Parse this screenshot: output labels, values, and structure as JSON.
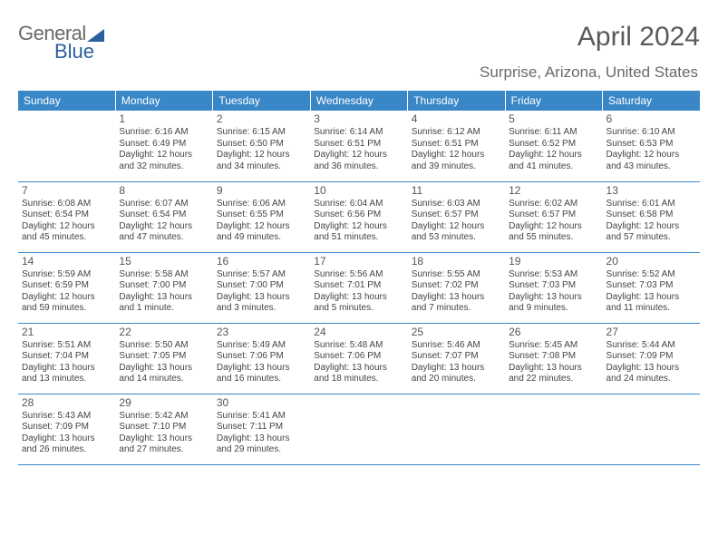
{
  "logo": {
    "part1": "General",
    "part2": "Blue"
  },
  "title": "April 2024",
  "location": "Surprise, Arizona, United States",
  "colors": {
    "header_bg": "#3a87c8",
    "header_text": "#ffffff",
    "row_border": "#3a87c8",
    "page_bg": "#ffffff",
    "body_text": "#444444",
    "logo_gray": "#6a6a6a",
    "logo_blue": "#2a5fa0"
  },
  "typography": {
    "title_fontsize": 30,
    "location_fontsize": 17,
    "dayheader_fontsize": 12,
    "daynum_fontsize": 12,
    "cell_fontsize": 10
  },
  "day_headers": [
    "Sunday",
    "Monday",
    "Tuesday",
    "Wednesday",
    "Thursday",
    "Friday",
    "Saturday"
  ],
  "weeks": [
    [
      null,
      {
        "n": "1",
        "sunrise": "6:16 AM",
        "sunset": "6:49 PM",
        "dl1": "Daylight: 12 hours",
        "dl2": "and 32 minutes."
      },
      {
        "n": "2",
        "sunrise": "6:15 AM",
        "sunset": "6:50 PM",
        "dl1": "Daylight: 12 hours",
        "dl2": "and 34 minutes."
      },
      {
        "n": "3",
        "sunrise": "6:14 AM",
        "sunset": "6:51 PM",
        "dl1": "Daylight: 12 hours",
        "dl2": "and 36 minutes."
      },
      {
        "n": "4",
        "sunrise": "6:12 AM",
        "sunset": "6:51 PM",
        "dl1": "Daylight: 12 hours",
        "dl2": "and 39 minutes."
      },
      {
        "n": "5",
        "sunrise": "6:11 AM",
        "sunset": "6:52 PM",
        "dl1": "Daylight: 12 hours",
        "dl2": "and 41 minutes."
      },
      {
        "n": "6",
        "sunrise": "6:10 AM",
        "sunset": "6:53 PM",
        "dl1": "Daylight: 12 hours",
        "dl2": "and 43 minutes."
      }
    ],
    [
      {
        "n": "7",
        "sunrise": "6:08 AM",
        "sunset": "6:54 PM",
        "dl1": "Daylight: 12 hours",
        "dl2": "and 45 minutes."
      },
      {
        "n": "8",
        "sunrise": "6:07 AM",
        "sunset": "6:54 PM",
        "dl1": "Daylight: 12 hours",
        "dl2": "and 47 minutes."
      },
      {
        "n": "9",
        "sunrise": "6:06 AM",
        "sunset": "6:55 PM",
        "dl1": "Daylight: 12 hours",
        "dl2": "and 49 minutes."
      },
      {
        "n": "10",
        "sunrise": "6:04 AM",
        "sunset": "6:56 PM",
        "dl1": "Daylight: 12 hours",
        "dl2": "and 51 minutes."
      },
      {
        "n": "11",
        "sunrise": "6:03 AM",
        "sunset": "6:57 PM",
        "dl1": "Daylight: 12 hours",
        "dl2": "and 53 minutes."
      },
      {
        "n": "12",
        "sunrise": "6:02 AM",
        "sunset": "6:57 PM",
        "dl1": "Daylight: 12 hours",
        "dl2": "and 55 minutes."
      },
      {
        "n": "13",
        "sunrise": "6:01 AM",
        "sunset": "6:58 PM",
        "dl1": "Daylight: 12 hours",
        "dl2": "and 57 minutes."
      }
    ],
    [
      {
        "n": "14",
        "sunrise": "5:59 AM",
        "sunset": "6:59 PM",
        "dl1": "Daylight: 12 hours",
        "dl2": "and 59 minutes."
      },
      {
        "n": "15",
        "sunrise": "5:58 AM",
        "sunset": "7:00 PM",
        "dl1": "Daylight: 13 hours",
        "dl2": "and 1 minute."
      },
      {
        "n": "16",
        "sunrise": "5:57 AM",
        "sunset": "7:00 PM",
        "dl1": "Daylight: 13 hours",
        "dl2": "and 3 minutes."
      },
      {
        "n": "17",
        "sunrise": "5:56 AM",
        "sunset": "7:01 PM",
        "dl1": "Daylight: 13 hours",
        "dl2": "and 5 minutes."
      },
      {
        "n": "18",
        "sunrise": "5:55 AM",
        "sunset": "7:02 PM",
        "dl1": "Daylight: 13 hours",
        "dl2": "and 7 minutes."
      },
      {
        "n": "19",
        "sunrise": "5:53 AM",
        "sunset": "7:03 PM",
        "dl1": "Daylight: 13 hours",
        "dl2": "and 9 minutes."
      },
      {
        "n": "20",
        "sunrise": "5:52 AM",
        "sunset": "7:03 PM",
        "dl1": "Daylight: 13 hours",
        "dl2": "and 11 minutes."
      }
    ],
    [
      {
        "n": "21",
        "sunrise": "5:51 AM",
        "sunset": "7:04 PM",
        "dl1": "Daylight: 13 hours",
        "dl2": "and 13 minutes."
      },
      {
        "n": "22",
        "sunrise": "5:50 AM",
        "sunset": "7:05 PM",
        "dl1": "Daylight: 13 hours",
        "dl2": "and 14 minutes."
      },
      {
        "n": "23",
        "sunrise": "5:49 AM",
        "sunset": "7:06 PM",
        "dl1": "Daylight: 13 hours",
        "dl2": "and 16 minutes."
      },
      {
        "n": "24",
        "sunrise": "5:48 AM",
        "sunset": "7:06 PM",
        "dl1": "Daylight: 13 hours",
        "dl2": "and 18 minutes."
      },
      {
        "n": "25",
        "sunrise": "5:46 AM",
        "sunset": "7:07 PM",
        "dl1": "Daylight: 13 hours",
        "dl2": "and 20 minutes."
      },
      {
        "n": "26",
        "sunrise": "5:45 AM",
        "sunset": "7:08 PM",
        "dl1": "Daylight: 13 hours",
        "dl2": "and 22 minutes."
      },
      {
        "n": "27",
        "sunrise": "5:44 AM",
        "sunset": "7:09 PM",
        "dl1": "Daylight: 13 hours",
        "dl2": "and 24 minutes."
      }
    ],
    [
      {
        "n": "28",
        "sunrise": "5:43 AM",
        "sunset": "7:09 PM",
        "dl1": "Daylight: 13 hours",
        "dl2": "and 26 minutes."
      },
      {
        "n": "29",
        "sunrise": "5:42 AM",
        "sunset": "7:10 PM",
        "dl1": "Daylight: 13 hours",
        "dl2": "and 27 minutes."
      },
      {
        "n": "30",
        "sunrise": "5:41 AM",
        "sunset": "7:11 PM",
        "dl1": "Daylight: 13 hours",
        "dl2": "and 29 minutes."
      },
      null,
      null,
      null,
      null
    ]
  ],
  "labels": {
    "sunrise_prefix": "Sunrise: ",
    "sunset_prefix": "Sunset: "
  }
}
